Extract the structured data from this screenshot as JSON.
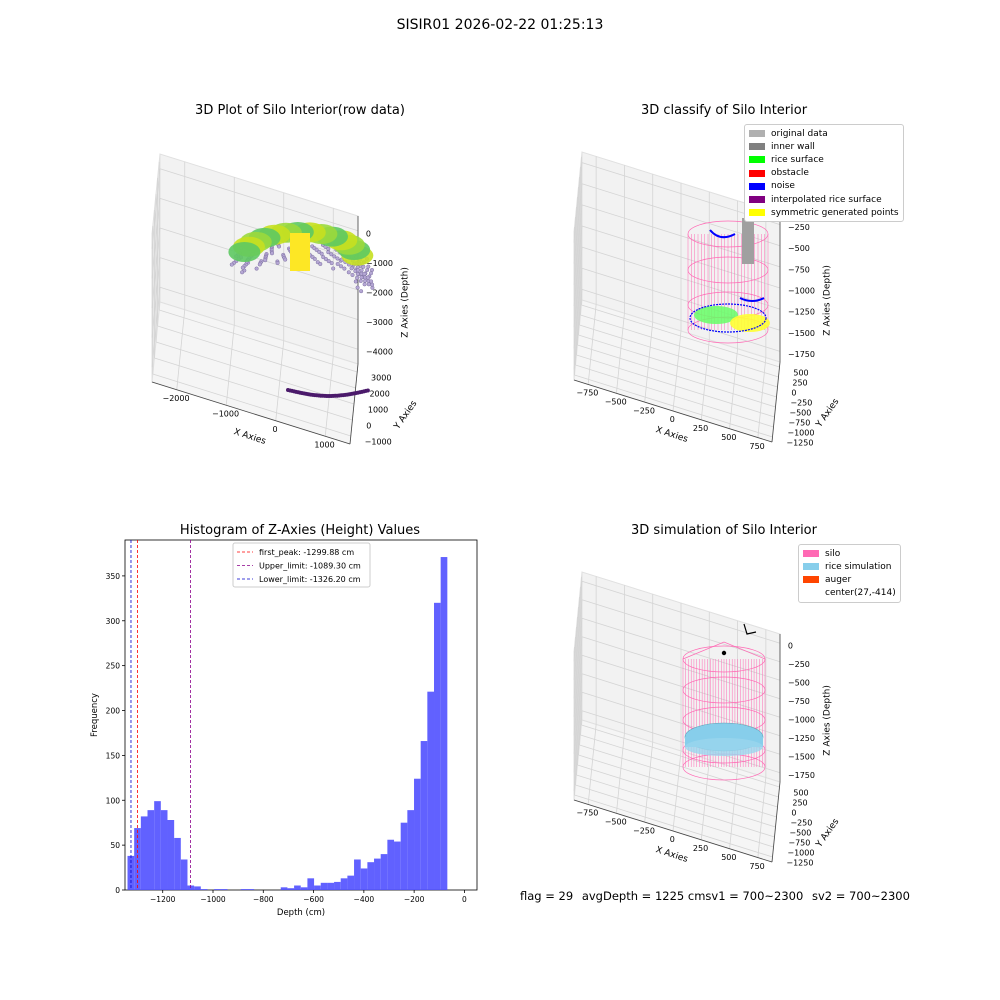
{
  "page": {
    "suptitle": "SISIR01 2026-02-22 01:25:13",
    "footer": {
      "flag": "flag = 29",
      "avg_depth": "avgDepth = 1225 cm",
      "sv1": "sv1 = 700~2300",
      "sv2": "sv2 = 700~2300"
    }
  },
  "colors": {
    "histogram_bar": "#5050ff",
    "first_peak_line": "#ff0000",
    "upper_limit_line": "#8b008b",
    "lower_limit_line": "#0000cd",
    "silo_wireframe": "#ff69b4",
    "rice_simulation": "#87ceeb",
    "auger": "#ff4500"
  },
  "plots": {
    "raw": {
      "title": "3D Plot of Silo Interior(row data)",
      "xlabel": "X Axies",
      "ylabel": "Y Axies",
      "zlabel": "Z Axies (Depth)",
      "xticks": [
        "−2000",
        "−1000",
        "0",
        "1000"
      ],
      "yticks": [
        "−1000",
        "0",
        "1000",
        "2000",
        "3000"
      ],
      "zticks": [
        "0",
        "−1000",
        "−2000",
        "−3000",
        "−4000"
      ]
    },
    "classify": {
      "title": "3D classify of Silo Interior",
      "xlabel": "X Axies",
      "ylabel": "Y Axies",
      "zlabel": "Z Axies (Depth)",
      "xticks": [
        "−750",
        "−500",
        "−250",
        "0",
        "250",
        "500",
        "750"
      ],
      "yticks": [
        "−1250",
        "−1000",
        "−750",
        "−500",
        "−250",
        "0",
        "250",
        "500"
      ],
      "zticks": [
        "−250",
        "−500",
        "−750",
        "−1000",
        "−1250",
        "−1500",
        "−1750"
      ],
      "legend": [
        {
          "label": "original data",
          "color": "#b0b0b0"
        },
        {
          "label": "inner wall",
          "color": "#808080"
        },
        {
          "label": "rice surface",
          "color": "#00ff00"
        },
        {
          "label": "obstacle",
          "color": "#ff0000"
        },
        {
          "label": "noise",
          "color": "#0000ff"
        },
        {
          "label": "interpolated rice surface",
          "color": "#800080"
        },
        {
          "label": "symmetric generated points",
          "color": "#ffff00"
        }
      ]
    },
    "simulation": {
      "title": "3D simulation of Silo Interior",
      "xlabel": "X Axies",
      "ylabel": "Y Axies",
      "zlabel": "Z Axies (Depth)",
      "xticks": [
        "−750",
        "−500",
        "−250",
        "0",
        "250",
        "500",
        "750"
      ],
      "yticks": [
        "−1250",
        "−1000",
        "−750",
        "−500",
        "−250",
        "0",
        "250",
        "500"
      ],
      "zticks": [
        "0",
        "−250",
        "−500",
        "−750",
        "−1000",
        "−1250",
        "−1500",
        "−1750"
      ],
      "legend": [
        {
          "label": "silo",
          "color": "#ff69b4"
        },
        {
          "label": "rice simulation",
          "color": "#87ceeb"
        },
        {
          "label": "auger",
          "color": "#ff4500"
        },
        {
          "label": "center(27,-414)",
          "color": ""
        }
      ]
    }
  },
  "chart_data": {
    "type": "bar",
    "title": "Histogram of Z-Axies (Height) Values",
    "xlabel": "Depth (cm)",
    "ylabel": "Frequency",
    "xlim": [
      -1350,
      50
    ],
    "ylim": [
      0,
      390
    ],
    "xticks": [
      -1200,
      -1000,
      -800,
      -600,
      -400,
      -200,
      0
    ],
    "xtick_labels": [
      "−1200",
      "−1000",
      "−800",
      "−600",
      "−400",
      "−200",
      "0"
    ],
    "yticks": [
      0,
      50,
      100,
      150,
      200,
      250,
      300,
      350
    ],
    "bin_width": 26.5,
    "bin_edges_start": -1340,
    "values": [
      38,
      69,
      82,
      89,
      99,
      89,
      78,
      58,
      34,
      5,
      4,
      1,
      0,
      1,
      1,
      0,
      0,
      1,
      1,
      0,
      0,
      0,
      0,
      3,
      2,
      5,
      3,
      13,
      5,
      8,
      8,
      9,
      13,
      16,
      34,
      24,
      31,
      35,
      40,
      56,
      54,
      75,
      89,
      124,
      166,
      221,
      320,
      371
    ],
    "vlines": [
      {
        "name": "first_peak: -1299.88 cm",
        "x": -1299.88,
        "color": "#ff0000"
      },
      {
        "name": "Upper_limit: -1089.30 cm",
        "x": -1089.3,
        "color": "#8b008b"
      },
      {
        "name": "Lower_limit: -1326.20 cm",
        "x": -1326.2,
        "color": "#0000cd"
      }
    ],
    "grid": false,
    "legend_position": "upper-center"
  }
}
